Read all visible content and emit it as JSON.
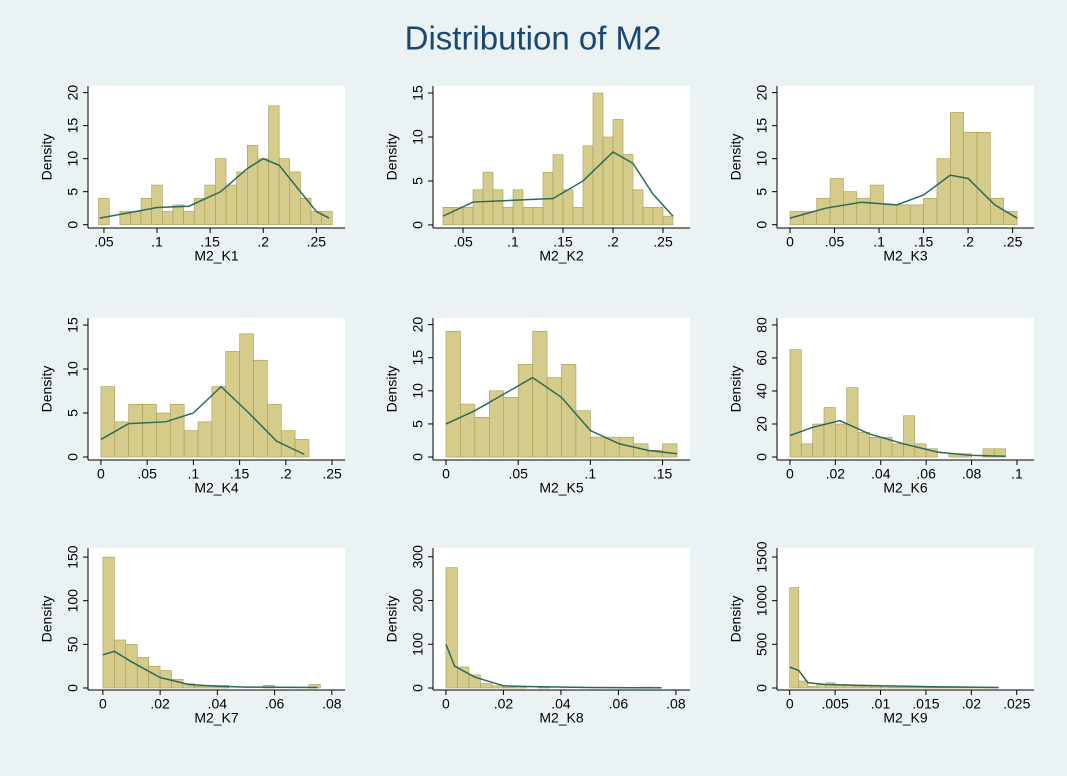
{
  "title": "Distribution of M2",
  "chart_data": [
    {
      "type": "histogram",
      "xlabel": "M2_K1",
      "ylabel": "Density",
      "color": "#d5cc8c",
      "edge_color": "#a89a52",
      "line_color": "#2b6a5a",
      "bins": [
        0.045,
        0.055,
        0.065,
        0.075,
        0.085,
        0.095,
        0.105,
        0.115,
        0.125,
        0.135,
        0.145,
        0.155,
        0.165,
        0.175,
        0.185,
        0.195,
        0.205,
        0.215,
        0.225,
        0.235,
        0.245,
        0.255,
        0.265
      ],
      "values": [
        4,
        0,
        2,
        2,
        4,
        6,
        2,
        3,
        2,
        4,
        6,
        10,
        6,
        8,
        12,
        10,
        18,
        10,
        8,
        4,
        2,
        2
      ],
      "density_line": {
        "x": [
          0.046,
          0.08,
          0.1,
          0.13,
          0.16,
          0.185,
          0.2,
          0.215,
          0.235,
          0.25,
          0.262
        ],
        "y": [
          1,
          2,
          2.6,
          2.8,
          5,
          8.5,
          10,
          9,
          5,
          2,
          1
        ]
      },
      "xlim": [
        0.035,
        0.277
      ],
      "ylim": [
        -0.5,
        21
      ],
      "xticks": [
        {
          "value": 0.05,
          "label": ".05"
        },
        {
          "value": 0.1,
          "label": ".1"
        },
        {
          "value": 0.15,
          "label": ".15"
        },
        {
          "value": 0.2,
          "label": ".2"
        },
        {
          "value": 0.25,
          "label": ".25"
        }
      ],
      "yticks": [
        0,
        5,
        10,
        15,
        20
      ]
    },
    {
      "type": "histogram",
      "xlabel": "M2_K2",
      "ylabel": "Density",
      "color": "#d5cc8c",
      "edge_color": "#a89a52",
      "line_color": "#2b6a5a",
      "bins": [
        0.03,
        0.04,
        0.05,
        0.06,
        0.07,
        0.08,
        0.09,
        0.1,
        0.11,
        0.12,
        0.13,
        0.14,
        0.15,
        0.16,
        0.17,
        0.18,
        0.19,
        0.2,
        0.21,
        0.22,
        0.23,
        0.24,
        0.25,
        0.26
      ],
      "values": [
        2,
        2,
        2,
        4,
        6,
        4,
        2,
        4,
        2,
        2,
        6,
        8,
        4,
        2,
        9,
        15,
        10,
        12,
        8,
        4,
        2,
        2,
        1
      ],
      "density_line": {
        "x": [
          0.03,
          0.06,
          0.1,
          0.14,
          0.17,
          0.2,
          0.22,
          0.24,
          0.26
        ],
        "y": [
          1,
          2.6,
          2.8,
          3,
          5,
          8.3,
          7,
          3.5,
          1
        ]
      },
      "xlim": [
        0.02,
        0.277
      ],
      "ylim": [
        -0.35,
        15.8
      ],
      "xticks": [
        {
          "value": 0.05,
          "label": ".05"
        },
        {
          "value": 0.1,
          "label": ".1"
        },
        {
          "value": 0.15,
          "label": ".15"
        },
        {
          "value": 0.2,
          "label": ".2"
        },
        {
          "value": 0.25,
          "label": ".25"
        }
      ],
      "yticks": [
        0,
        5,
        10,
        15
      ]
    },
    {
      "type": "histogram",
      "xlabel": "M2_K3",
      "ylabel": "Density",
      "color": "#d5cc8c",
      "edge_color": "#a89a52",
      "line_color": "#2b6a5a",
      "bins": [
        0,
        0.015,
        0.03,
        0.045,
        0.06,
        0.075,
        0.09,
        0.105,
        0.12,
        0.135,
        0.15,
        0.165,
        0.18,
        0.195,
        0.21,
        0.225,
        0.24,
        0.255
      ],
      "values": [
        2,
        2,
        4,
        7,
        5,
        4,
        6,
        3,
        3,
        3,
        4,
        10,
        17,
        14,
        14,
        4,
        2
      ],
      "density_line": {
        "x": [
          0,
          0.04,
          0.08,
          0.12,
          0.15,
          0.18,
          0.2,
          0.23,
          0.255
        ],
        "y": [
          1,
          2.5,
          3.4,
          3,
          4.5,
          7.5,
          7,
          3,
          1
        ]
      },
      "xlim": [
        -0.0146,
        0.274
      ],
      "ylim": [
        -0.5,
        21
      ],
      "xticks": [
        0,
        {
          "value": 0.05,
          "label": ".05"
        },
        {
          "value": 0.1,
          "label": ".1"
        },
        {
          "value": 0.15,
          "label": ".15"
        },
        {
          "value": 0.2,
          "label": ".2"
        },
        {
          "value": 0.25,
          "label": ".25"
        }
      ],
      "yticks": [
        0,
        5,
        10,
        15,
        20
      ]
    },
    {
      "type": "histogram",
      "xlabel": "M2_K4",
      "ylabel": "Density",
      "color": "#d5cc8c",
      "edge_color": "#a89a52",
      "line_color": "#2b6a5a",
      "bins": [
        0,
        0.015,
        0.03,
        0.045,
        0.06,
        0.075,
        0.09,
        0.105,
        0.12,
        0.135,
        0.15,
        0.165,
        0.18,
        0.195,
        0.21,
        0.225
      ],
      "values": [
        8,
        4,
        6,
        6,
        5,
        6,
        3,
        4,
        8,
        12,
        14,
        11,
        6,
        3,
        2
      ],
      "density_line": {
        "x": [
          0,
          0.03,
          0.07,
          0.1,
          0.13,
          0.16,
          0.19,
          0.22
        ],
        "y": [
          2,
          3.8,
          4,
          5,
          8,
          5,
          1.8,
          0.3
        ]
      },
      "xlim": [
        -0.014,
        0.264
      ],
      "ylim": [
        -0.34,
        15.8
      ],
      "xticks": [
        0,
        {
          "value": 0.05,
          "label": ".05"
        },
        {
          "value": 0.1,
          "label": ".1"
        },
        {
          "value": 0.15,
          "label": ".15"
        },
        {
          "value": 0.2,
          "label": ".2"
        },
        {
          "value": 0.25,
          "label": ".25"
        }
      ],
      "yticks": [
        0,
        5,
        10,
        15
      ]
    },
    {
      "type": "histogram",
      "xlabel": "M2_K5",
      "ylabel": "Density",
      "color": "#d5cc8c",
      "edge_color": "#a89a52",
      "line_color": "#2b6a5a",
      "bins": [
        0,
        0.01,
        0.02,
        0.03,
        0.04,
        0.05,
        0.06,
        0.07,
        0.08,
        0.09,
        0.1,
        0.11,
        0.12,
        0.13,
        0.14,
        0.15,
        0.16
      ],
      "values": [
        19,
        8,
        6,
        10,
        9,
        14,
        19,
        12,
        14,
        7,
        3,
        3,
        3,
        2,
        1,
        2
      ],
      "density_line": {
        "x": [
          0,
          0.02,
          0.04,
          0.06,
          0.08,
          0.1,
          0.12,
          0.14,
          0.16
        ],
        "y": [
          5,
          7,
          9.5,
          12,
          9,
          4,
          2,
          1,
          0.5
        ]
      },
      "xlim": [
        -0.009,
        0.169
      ],
      "ylim": [
        -0.45,
        21
      ],
      "xticks": [
        0,
        {
          "value": 0.05,
          "label": ".05"
        },
        {
          "value": 0.1,
          "label": ".1"
        },
        {
          "value": 0.15,
          "label": ".15"
        }
      ],
      "yticks": [
        0,
        5,
        10,
        15,
        20
      ]
    },
    {
      "type": "histogram",
      "xlabel": "M2_K6",
      "ylabel": "Density",
      "color": "#d5cc8c",
      "edge_color": "#a89a52",
      "line_color": "#2b6a5a",
      "bins": [
        0,
        0.005,
        0.01,
        0.015,
        0.02,
        0.025,
        0.03,
        0.035,
        0.04,
        0.045,
        0.05,
        0.055,
        0.06,
        0.065,
        0.07,
        0.075,
        0.08,
        0.085,
        0.09,
        0.095
      ],
      "values": [
        65,
        8,
        20,
        30,
        20,
        42,
        15,
        12,
        12,
        8,
        25,
        8,
        5,
        0,
        2,
        2,
        0,
        5,
        5
      ],
      "density_line": {
        "x": [
          0,
          0.01,
          0.022,
          0.035,
          0.05,
          0.065,
          0.08,
          0.095
        ],
        "y": [
          13,
          18,
          22,
          14,
          8,
          3,
          1,
          0.5
        ]
      },
      "xlim": [
        -0.0057,
        0.1075
      ],
      "ylim": [
        -1.8,
        84.2
      ],
      "xticks": [
        0,
        {
          "value": 0.02,
          "label": ".02"
        },
        {
          "value": 0.04,
          "label": ".04"
        },
        {
          "value": 0.06,
          "label": ".06"
        },
        {
          "value": 0.08,
          "label": ".08"
        },
        {
          "value": 0.1,
          "label": ".1"
        }
      ],
      "yticks": [
        0,
        20,
        40,
        60,
        80
      ]
    },
    {
      "type": "histogram",
      "xlabel": "M2_K7",
      "ylabel": "Density",
      "color": "#d5cc8c",
      "edge_color": "#a89a52",
      "line_color": "#2b6a5a",
      "bins": [
        0,
        0.004,
        0.008,
        0.012,
        0.016,
        0.02,
        0.024,
        0.028,
        0.032,
        0.036,
        0.04,
        0.044,
        0.048,
        0.052,
        0.056,
        0.06,
        0.064,
        0.068,
        0.072,
        0.076
      ],
      "values": [
        150,
        55,
        50,
        35,
        25,
        20,
        10,
        5,
        2,
        3,
        3,
        0,
        0,
        0,
        3,
        0,
        0,
        0,
        4
      ],
      "density_line": {
        "x": [
          0,
          0.004,
          0.01,
          0.02,
          0.03,
          0.04,
          0.05,
          0.075
        ],
        "y": [
          38,
          42,
          30,
          12,
          4,
          2,
          1,
          0.5
        ]
      },
      "xlim": [
        -0.0052,
        0.0846
      ],
      "ylim": [
        -2.3,
        160.4
      ],
      "xticks": [
        0,
        {
          "value": 0.02,
          "label": ".02"
        },
        {
          "value": 0.04,
          "label": ".04"
        },
        {
          "value": 0.06,
          "label": ".06"
        },
        {
          "value": 0.08,
          "label": ".08"
        }
      ],
      "yticks": [
        0,
        50,
        100,
        150
      ]
    },
    {
      "type": "histogram",
      "xlabel": "M2_K8",
      "ylabel": "Density",
      "color": "#d5cc8c",
      "edge_color": "#a89a52",
      "line_color": "#2b6a5a",
      "bins": [
        0,
        0.004,
        0.008,
        0.012,
        0.016,
        0.02,
        0.024,
        0.028,
        0.032,
        0.036,
        0.04,
        0.044,
        0.048,
        0.052,
        0.056,
        0.06,
        0.064,
        0.068,
        0.072,
        0.076
      ],
      "values": [
        275,
        48,
        30,
        10,
        5,
        2,
        3,
        0,
        2,
        0,
        0,
        0,
        0,
        0,
        0,
        0,
        0,
        2,
        0
      ],
      "density_line": {
        "x": [
          0,
          0.003,
          0.01,
          0.02,
          0.03,
          0.05,
          0.075
        ],
        "y": [
          100,
          50,
          25,
          5,
          3,
          1,
          0.5
        ]
      },
      "xlim": [
        -0.0045,
        0.0849
      ],
      "ylim": [
        -4.6,
        320
      ],
      "xticks": [
        0,
        {
          "value": 0.02,
          "label": ".02"
        },
        {
          "value": 0.04,
          "label": ".04"
        },
        {
          "value": 0.06,
          "label": ".06"
        },
        {
          "value": 0.08,
          "label": ".08"
        }
      ],
      "yticks": [
        0,
        100,
        200,
        300
      ]
    },
    {
      "type": "histogram",
      "xlabel": "M2_K9",
      "ylabel": "Density",
      "color": "#d5cc8c",
      "edge_color": "#a89a52",
      "line_color": "#2b6a5a",
      "bins": [
        0,
        0.001,
        0.002,
        0.003,
        0.004,
        0.005,
        0.006,
        0.007,
        0.008,
        0.009,
        0.01,
        0.011,
        0.012,
        0.013,
        0.014,
        0.015,
        0.016,
        0.017,
        0.018,
        0.019,
        0.02,
        0.021,
        0.022,
        0.023
      ],
      "values": [
        1150,
        80,
        20,
        40,
        60,
        40,
        30,
        20,
        20,
        20,
        20,
        10,
        10,
        10,
        10,
        5,
        5,
        5,
        5,
        5,
        5,
        5,
        5
      ],
      "density_line": {
        "x": [
          0,
          0.001,
          0.002,
          0.004,
          0.008,
          0.015,
          0.023
        ],
        "y": [
          240,
          200,
          60,
          40,
          30,
          15,
          5
        ]
      },
      "xlim": [
        -0.0014,
        0.0269
      ],
      "ylim": [
        -23,
        1603
      ],
      "xticks": [
        0,
        {
          "value": 0.005,
          "label": ".005"
        },
        {
          "value": 0.01,
          "label": ".01"
        },
        {
          "value": 0.015,
          "label": ".015"
        },
        {
          "value": 0.02,
          "label": ".02"
        },
        {
          "value": 0.025,
          "label": ".025"
        }
      ],
      "yticks": [
        0,
        500,
        1000,
        1500
      ]
    }
  ]
}
